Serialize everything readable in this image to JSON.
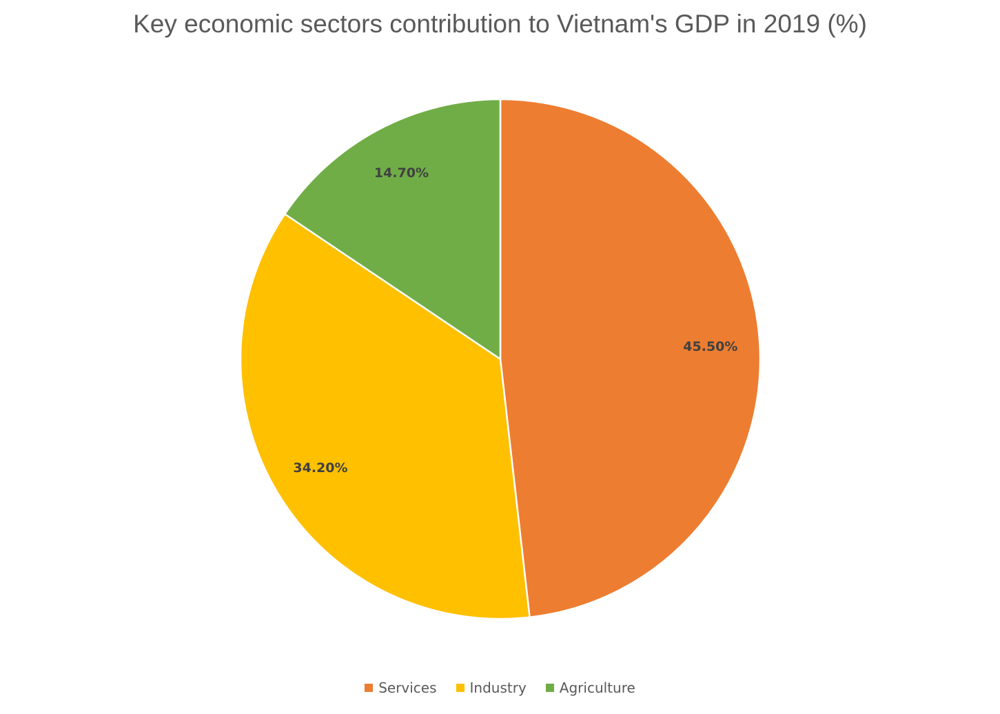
{
  "chart_data": {
    "type": "pie",
    "title": "Key economic sectors contribution to Vietnam's GDP in 2019 (%)",
    "categories": [
      "Services",
      "Industry",
      "Agriculture"
    ],
    "values": [
      45.5,
      34.2,
      14.7
    ],
    "data_labels": [
      "45.50%",
      "34.20%",
      "14.70%"
    ],
    "colors": [
      "#ED7D31",
      "#FFC000",
      "#70AD47"
    ],
    "legend_position": "bottom"
  }
}
